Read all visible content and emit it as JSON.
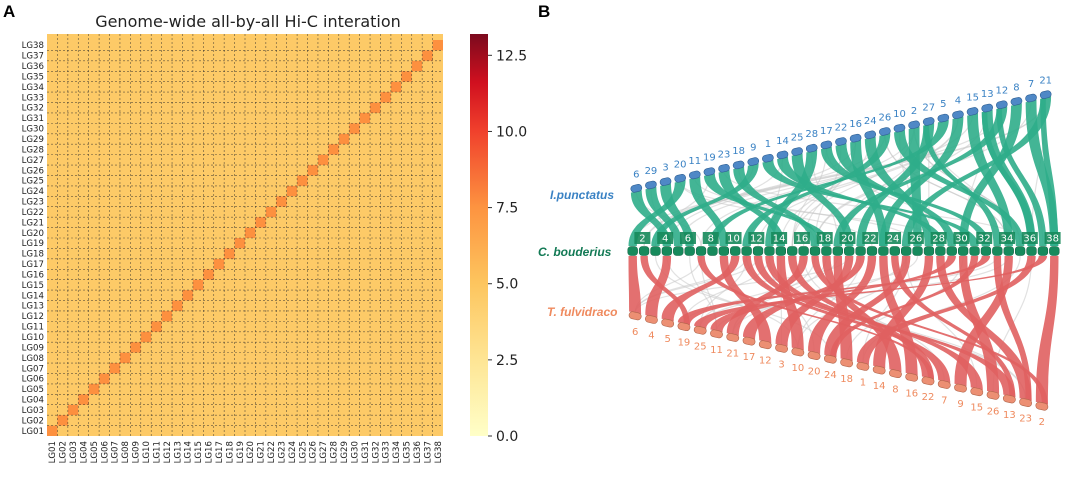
{
  "panel_a": {
    "letter": "A",
    "chart_data": {
      "type": "heatmap",
      "title": "Genome-wide all-by-all Hi-C interation",
      "row_labels": [
        "LG01",
        "LG02",
        "LG03",
        "LG04",
        "LG05",
        "LG06",
        "LG07",
        "LG08",
        "LG09",
        "LG10",
        "LG11",
        "LG12",
        "LG13",
        "LG14",
        "LG15",
        "LG16",
        "LG17",
        "LG18",
        "LG19",
        "LG20",
        "LG21",
        "LG22",
        "LG23",
        "LG24",
        "LG25",
        "LG26",
        "LG27",
        "LG28",
        "LG29",
        "LG30",
        "LG31",
        "LG32",
        "LG33",
        "LG34",
        "LG35",
        "LG36",
        "LG37",
        "LG38"
      ],
      "col_labels": [
        "LG01",
        "LG02",
        "LG03",
        "LG04",
        "LG05",
        "LG06",
        "LG07",
        "LG08",
        "LG09",
        "LG10",
        "LG11",
        "LG12",
        "LG13",
        "LG14",
        "LG15",
        "LG16",
        "LG17",
        "LG18",
        "LG19",
        "LG20",
        "LG21",
        "LG22",
        "LG23",
        "LG24",
        "LG25",
        "LG26",
        "LG27",
        "LG28",
        "LG29",
        "LG30",
        "LG31",
        "LG32",
        "LG33",
        "LG34",
        "LG35",
        "LG36",
        "LG37",
        "LG38"
      ],
      "colorbar": {
        "ticks": [
          "0.0",
          "2.5",
          "5.0",
          "7.5",
          "10.0",
          "12.5"
        ],
        "min": 0,
        "max": 13.2
      },
      "off_diagonal_value": 4.6,
      "diagonal_value": 7.6
    }
  },
  "panel_b": {
    "letter": "B",
    "species_top": "I.punctatus",
    "species_mid": "C. bouderius",
    "species_bottom": "T. fulvidraco",
    "top_labels": [
      "6",
      "29",
      "3",
      "20",
      "11",
      "19",
      "23",
      "18",
      "9",
      "1",
      "14",
      "25",
      "28",
      "17",
      "22",
      "16",
      "24",
      "26",
      "10",
      "2",
      "27",
      "5",
      "4",
      "15",
      "13",
      "12",
      "8",
      "7",
      "21"
    ],
    "mid_labels": [
      "2",
      "4",
      "6",
      "8",
      "10",
      "12",
      "14",
      "16",
      "18",
      "20",
      "22",
      "24",
      "26",
      "28",
      "30",
      "32",
      "34",
      "36",
      "38"
    ],
    "bottom_labels": [
      "6",
      "4",
      "5",
      "19",
      "25",
      "11",
      "21",
      "17",
      "12",
      "3",
      "10",
      "20",
      "24",
      "18",
      "1",
      "14",
      "8",
      "16",
      "22",
      "7",
      "9",
      "15",
      "26",
      "13",
      "23",
      "2"
    ],
    "colors": {
      "top": "#4f88c6",
      "mid": "#178a5c",
      "bottom": "#ec8f73",
      "link_top": "#2fad8a",
      "link_bottom": "#e06161"
    }
  }
}
